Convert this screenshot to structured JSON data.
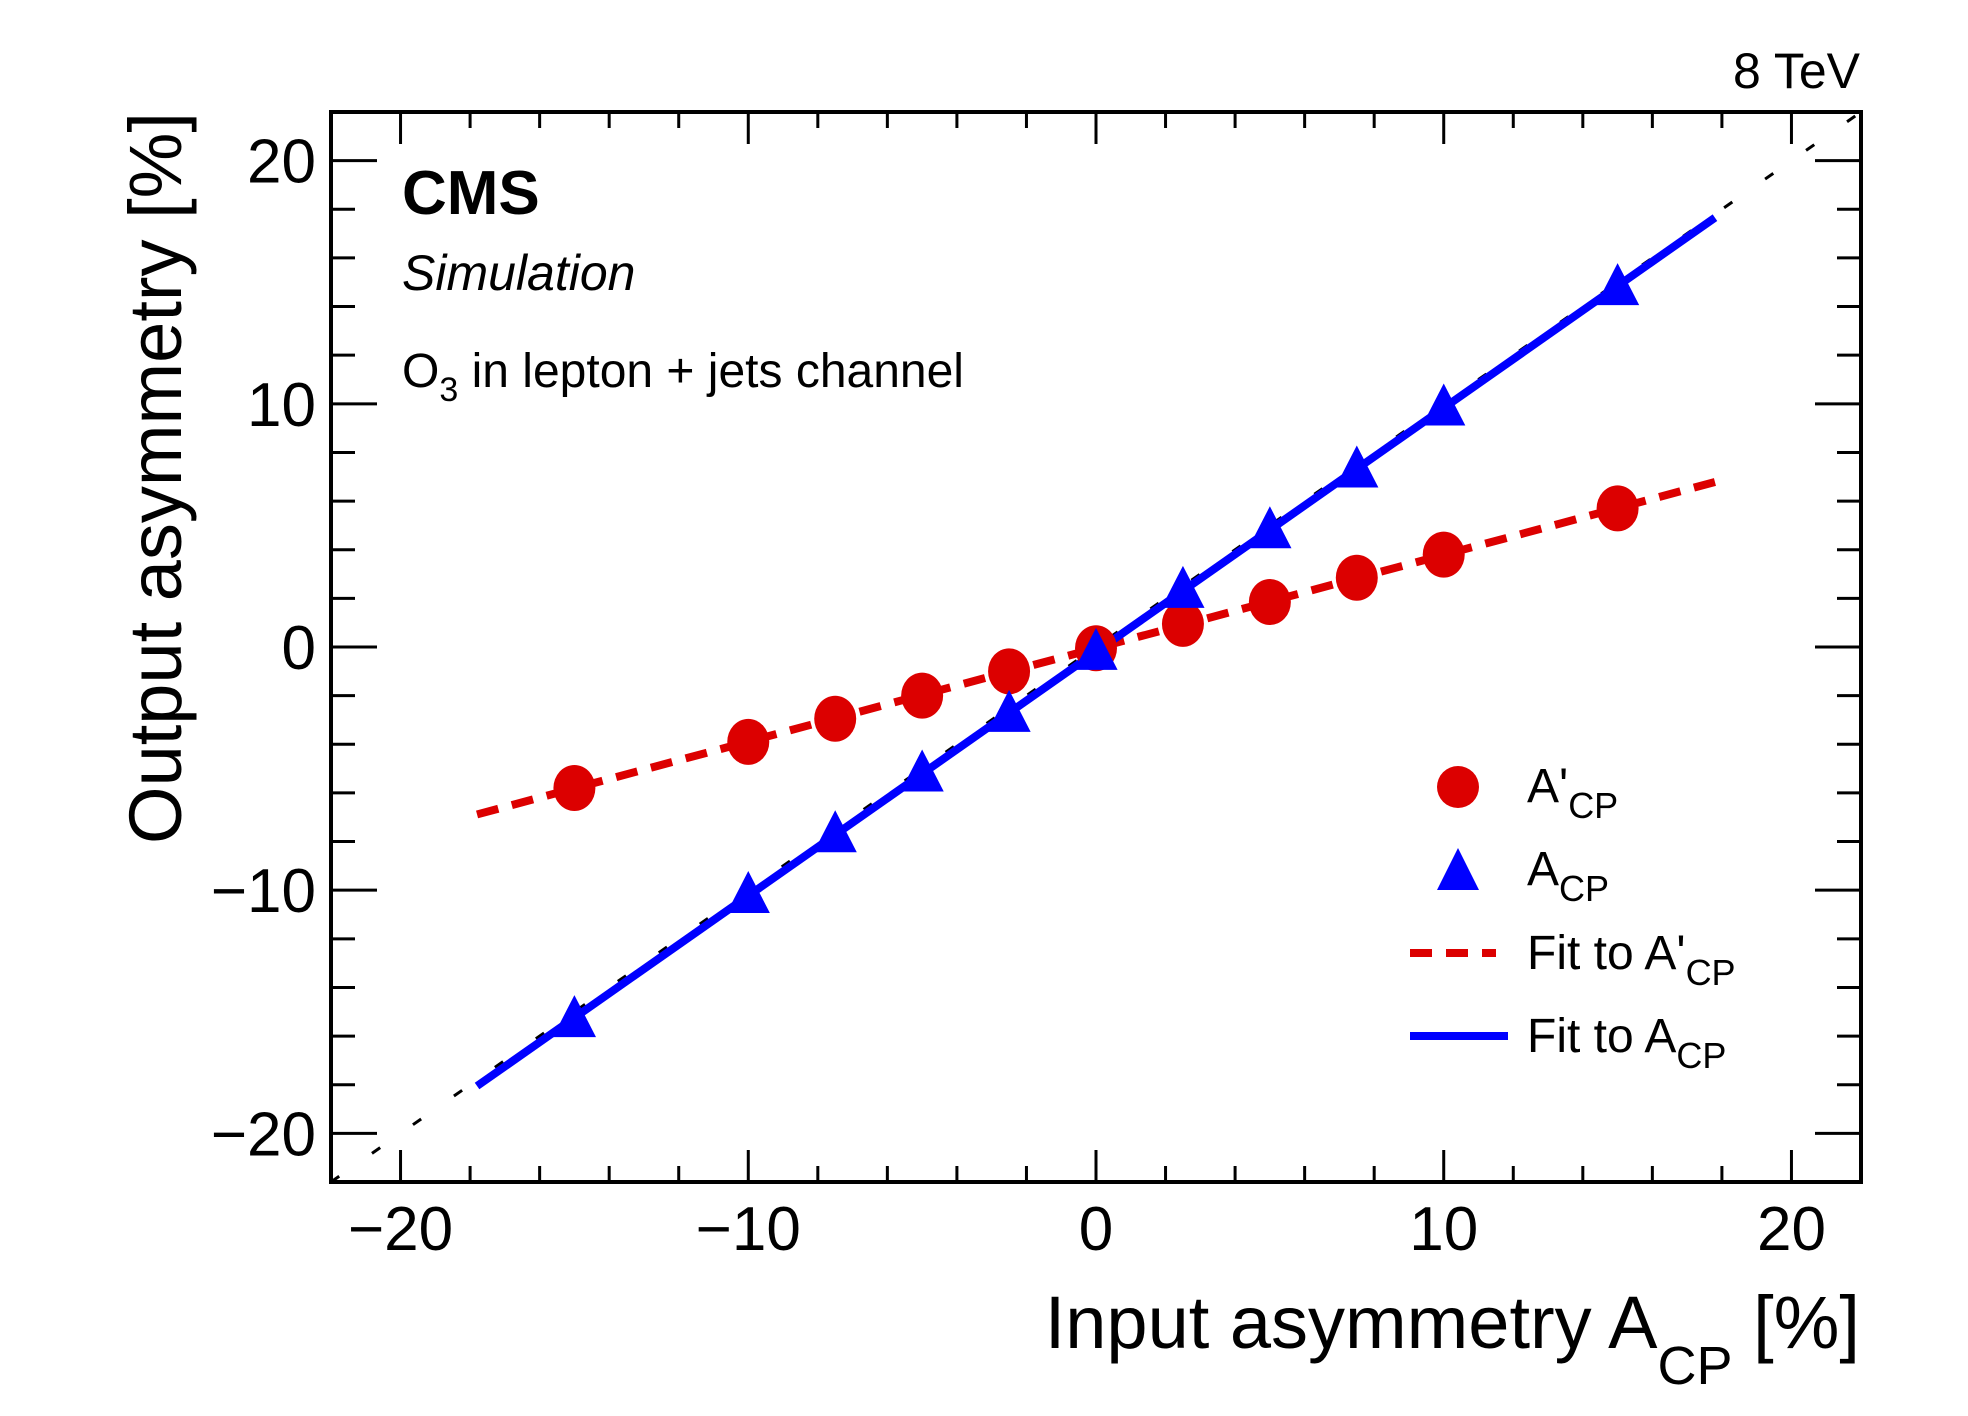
{
  "chart_data": {
    "type": "scatter",
    "energy_label": "8 TeV",
    "experiment_label": "CMS",
    "status_label": "Simulation",
    "annotation": {
      "main": "O",
      "sub": "3",
      "rest": " in lepton + jets channel"
    },
    "xlabel": {
      "main": "Input asymmetry A",
      "sub": "CP",
      "rest": " [%]"
    },
    "ylabel": "Output asymmetry [%]",
    "xlim": [
      -22,
      22
    ],
    "ylim": [
      -22,
      22
    ],
    "x_major_ticks": [
      -20,
      -10,
      0,
      10,
      20
    ],
    "y_major_ticks": [
      -20,
      -10,
      0,
      10,
      20
    ],
    "x_tick_labels": [
      "−20",
      "−10",
      "0",
      "10",
      "20"
    ],
    "y_tick_labels": [
      "−20",
      "−10",
      "0",
      "10",
      "20"
    ],
    "minor_tick_step": 2,
    "grid": false,
    "legend_position": "bottom-right",
    "series": [
      {
        "name": "A'CP",
        "legend": {
          "main": "A'",
          "sub": "CP"
        },
        "marker": "circle",
        "color": "#dc0000",
        "x": [
          -15,
          -10,
          -7.5,
          -5,
          -2.5,
          0,
          2.5,
          5,
          7.5,
          10,
          15
        ],
        "y": [
          -5.8,
          -3.9,
          -2.95,
          -2.0,
          -1.0,
          -0.05,
          0.95,
          1.85,
          2.85,
          3.8,
          5.7
        ]
      },
      {
        "name": "ACP",
        "legend": {
          "main": "A",
          "sub": "CP"
        },
        "marker": "triangle",
        "color": "#0000ff",
        "x": [
          -15,
          -10,
          -7.5,
          -5,
          -2.5,
          0,
          2.5,
          5,
          7.5,
          10,
          15
        ],
        "y": [
          -15.3,
          -10.2,
          -7.7,
          -5.2,
          -2.75,
          -0.2,
          2.35,
          4.8,
          7.3,
          9.85,
          14.8
        ]
      }
    ],
    "fits": [
      {
        "name": "Fit to A'CP",
        "legend": {
          "main": "Fit to A'",
          "sub": "CP"
        },
        "style": "dashed",
        "color": "#dc0000",
        "x_range": [
          -17.8,
          17.8
        ],
        "slope": 0.384,
        "intercept": -0.05
      },
      {
        "name": "Fit to ACP",
        "legend": {
          "main": "Fit to A",
          "sub": "CP"
        },
        "style": "solid",
        "color": "#0000ff",
        "x_range": [
          -17.8,
          17.8
        ],
        "slope": 1.003,
        "intercept": -0.2
      }
    ],
    "reference_line": {
      "name": "y = x",
      "style": "dotted",
      "color": "#000000"
    }
  }
}
